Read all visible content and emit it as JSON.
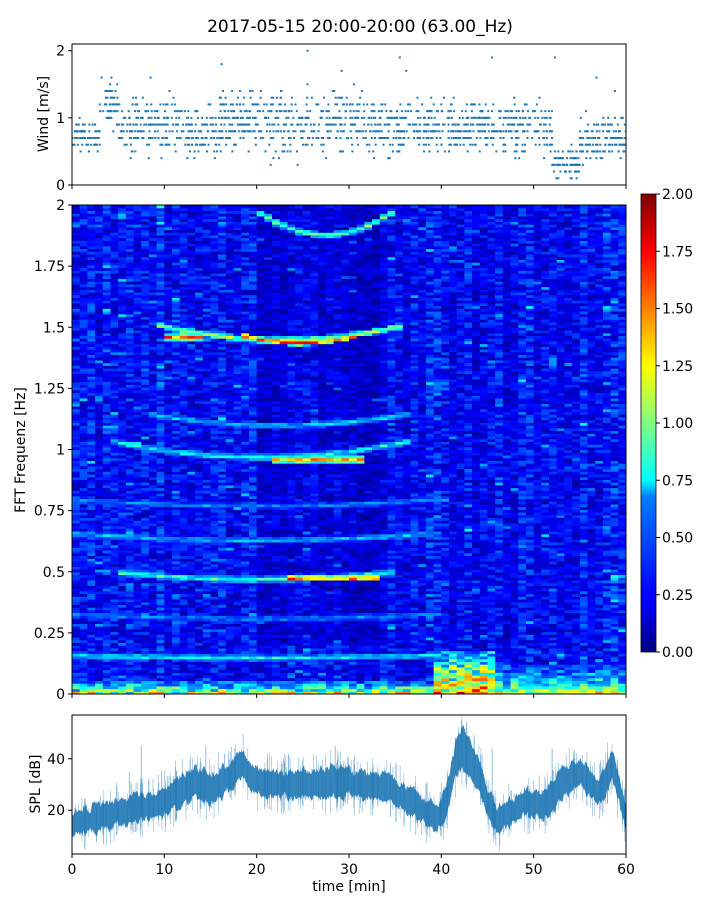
{
  "title": "2017-05-15 20:00-20:00 (63.00_Hz)",
  "chart_data": [
    {
      "type": "scatter",
      "name": "wind",
      "ylabel": "Wind [m/s]",
      "xlim": [
        0,
        60
      ],
      "ylim": [
        0,
        2.1
      ],
      "yticks": [
        0,
        1,
        2
      ],
      "ytick_labels": [
        "0",
        "1",
        "2"
      ],
      "color": "#1f77b4",
      "segments": [
        {
          "x": [
            0,
            3
          ],
          "y": [
            0.7,
            0.75
          ],
          "spread": 0.18
        },
        {
          "x": [
            3,
            5
          ],
          "y": [
            1.2,
            1.2
          ],
          "spread": 0.25
        },
        {
          "x": [
            5,
            12
          ],
          "y": [
            0.85,
            0.9
          ],
          "spread": 0.3
        },
        {
          "x": [
            12,
            16
          ],
          "y": [
            0.75,
            0.8
          ],
          "spread": 0.3
        },
        {
          "x": [
            16,
            32
          ],
          "y": [
            0.95,
            0.95
          ],
          "spread": 0.35
        },
        {
          "x": [
            32,
            42
          ],
          "y": [
            0.85,
            0.85
          ],
          "spread": 0.3
        },
        {
          "x": [
            42,
            52
          ],
          "y": [
            0.85,
            0.85
          ],
          "spread": 0.3
        },
        {
          "x": [
            52,
            55
          ],
          "y": [
            0.35,
            0.3
          ],
          "spread": 0.15
        },
        {
          "x": [
            55,
            60
          ],
          "y": [
            0.65,
            0.7
          ],
          "spread": 0.25
        }
      ],
      "outliers": [
        {
          "x": 25.5,
          "y": 2.0
        },
        {
          "x": 35.5,
          "y": 1.9
        },
        {
          "x": 45.5,
          "y": 1.9
        },
        {
          "x": 52.3,
          "y": 1.9
        },
        {
          "x": 16.2,
          "y": 1.8
        },
        {
          "x": 36.2,
          "y": 1.7
        },
        {
          "x": 29.2,
          "y": 1.7
        },
        {
          "x": 8.5,
          "y": 1.6
        },
        {
          "x": 56.8,
          "y": 1.6
        },
        {
          "x": 3.2,
          "y": 1.6
        },
        {
          "x": 58.8,
          "y": 1.4
        }
      ]
    },
    {
      "type": "heatmap",
      "name": "spectrogram",
      "ylabel": "FFT Frequenz [Hz]",
      "xlim": [
        0,
        60
      ],
      "ylim": [
        0,
        2
      ],
      "yticks": [
        0,
        0.25,
        0.5,
        0.75,
        1,
        1.25,
        1.5,
        1.75,
        2
      ],
      "ytick_labels": [
        "0",
        "0.25",
        "0.5",
        "0.75",
        "1",
        "1.25",
        "1.5",
        "1.75",
        "2"
      ],
      "colormap": "jet",
      "clim": [
        0,
        2
      ],
      "background_level": 0.25,
      "harmonic_lines": [
        {
          "x0": 9.5,
          "x1": 36,
          "f0": 1.51,
          "dip": 0.06,
          "level": 1.2
        },
        {
          "x0": 10,
          "x1": 14,
          "f0": 1.46,
          "dip": 0.0,
          "level": 1.8
        },
        {
          "x0": 18,
          "x1": 31,
          "f0": 1.47,
          "dip": 0.03,
          "level": 1.85
        },
        {
          "x0": 20,
          "x1": 35,
          "f0": 1.98,
          "dip": 0.1,
          "level": 1.1
        },
        {
          "x0": 8,
          "x1": 37,
          "f0": 1.15,
          "dip": 0.05,
          "level": 0.75
        },
        {
          "x0": 4,
          "x1": 37,
          "f0": 1.04,
          "dip": 0.07,
          "level": 0.9
        },
        {
          "x0": 22,
          "x1": 32,
          "f0": 0.96,
          "dip": 0.0,
          "level": 1.6
        },
        {
          "x0": 0,
          "x1": 40,
          "f0": 0.8,
          "dip": 0.03,
          "level": 0.6
        },
        {
          "x0": 0,
          "x1": 40,
          "f0": 0.66,
          "dip": 0.03,
          "level": 0.7
        },
        {
          "x0": 5,
          "x1": 35,
          "f0": 0.5,
          "dip": 0.03,
          "level": 1.0
        },
        {
          "x0": 23,
          "x1": 33,
          "f0": 0.475,
          "dip": 0.0,
          "level": 1.8
        },
        {
          "x0": 0,
          "x1": 40,
          "f0": 0.33,
          "dip": 0.02,
          "level": 0.6
        },
        {
          "x0": 0,
          "x1": 40,
          "f0": 0.16,
          "dip": 0.01,
          "level": 0.85
        }
      ],
      "low_freq_hotspots": [
        {
          "x0": 0,
          "x1": 60,
          "f1": 0.05,
          "level": 1.5
        },
        {
          "x0": 39,
          "x1": 46,
          "f1": 0.18,
          "level": 1.8
        },
        {
          "x0": 46,
          "x1": 60,
          "f1": 0.12,
          "level": 1.2
        }
      ],
      "colorbar": {
        "ticks": [
          0,
          0.25,
          0.5,
          0.75,
          1.0,
          1.25,
          1.5,
          1.75,
          2.0
        ],
        "tick_labels": [
          "0.00",
          "0.25",
          "0.50",
          "0.75",
          "1.00",
          "1.25",
          "1.50",
          "1.75",
          "2.00"
        ]
      }
    },
    {
      "type": "line",
      "name": "spl",
      "ylabel": "SPL [dB]",
      "xlabel": "time [min]",
      "xlim": [
        0,
        60
      ],
      "ylim": [
        3,
        57
      ],
      "yticks": [
        20,
        40
      ],
      "ytick_labels": [
        "20",
        "40"
      ],
      "xticks": [
        0,
        10,
        20,
        30,
        40,
        50,
        60
      ],
      "xtick_labels": [
        "0",
        "10",
        "20",
        "30",
        "40",
        "50",
        "60"
      ],
      "color": "#1f77b4",
      "envelope": {
        "x": [
          0,
          3,
          6,
          9,
          11,
          13,
          15,
          17,
          18.5,
          20,
          22,
          25,
          28,
          31,
          34,
          36,
          38,
          39.5,
          40.5,
          41.5,
          42.3,
          43,
          44,
          45,
          46,
          47.5,
          49,
          51,
          53,
          55,
          57,
          58.5,
          60
        ],
        "y": [
          15,
          17,
          20,
          22,
          26,
          30,
          28,
          33,
          38,
          31,
          30,
          30,
          31,
          30,
          29,
          25,
          20,
          17,
          22,
          38,
          45,
          40,
          35,
          23,
          15,
          19,
          23,
          22,
          30,
          35,
          27,
          37,
          18
        ],
        "half_width": [
          4,
          5,
          5,
          5,
          6,
          6,
          6,
          5,
          5,
          5,
          5,
          5,
          6,
          5,
          5,
          5,
          5,
          5,
          6,
          7,
          8,
          7,
          6,
          5,
          5,
          5,
          5,
          5,
          6,
          5,
          5,
          6,
          5
        ]
      },
      "spikes": [
        {
          "x": 7.5,
          "y": 45
        },
        {
          "x": 14.5,
          "y": 45
        },
        {
          "x": 16.5,
          "y": 42
        },
        {
          "x": 23,
          "y": 39
        },
        {
          "x": 28.5,
          "y": 45
        },
        {
          "x": 42.2,
          "y": 55
        },
        {
          "x": 45.5,
          "y": 44
        },
        {
          "x": 52,
          "y": 44
        },
        {
          "x": 6.2,
          "y": 35
        }
      ]
    }
  ]
}
